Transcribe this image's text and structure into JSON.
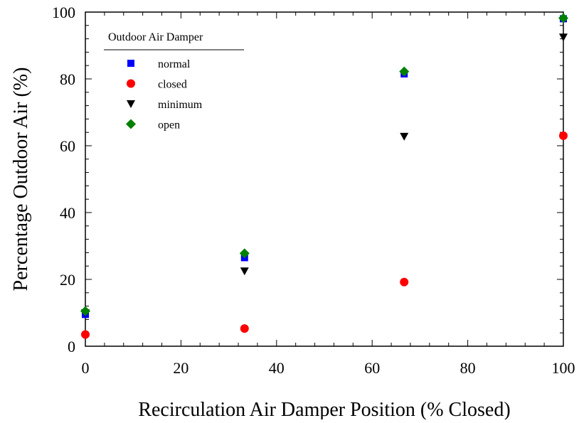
{
  "chart_data": {
    "type": "scatter",
    "x_label": "Recirculation Air Damper Position (% Closed)",
    "y_label": "Percentage Outdoor Air (%)",
    "legend_title": "Outdoor Air Damper",
    "legend": "upper left",
    "xlim": [
      0,
      100
    ],
    "xticks": [
      0,
      20,
      40,
      60,
      80,
      100
    ],
    "ylim": [
      0,
      100
    ],
    "yticks": [
      0,
      20,
      40,
      60,
      80,
      100
    ],
    "x": [
      0,
      33.3,
      66.7,
      100
    ],
    "series": [
      {
        "name": "normal",
        "color": "#0000ff",
        "marker": "square",
        "values": [
          9.5,
          26.5,
          81.5,
          98
        ]
      },
      {
        "name": "closed",
        "color": "#ff0000",
        "marker": "circle",
        "values": [
          3.5,
          5.3,
          19.2,
          63
        ]
      },
      {
        "name": "minimum",
        "color": "#000000",
        "marker": "triangle-down",
        "values": [
          10,
          22.5,
          62.8,
          92.5
        ]
      },
      {
        "name": "open",
        "color": "#008000",
        "marker": "diamond",
        "values": [
          10.5,
          27.8,
          82.2,
          98.2
        ]
      }
    ]
  }
}
